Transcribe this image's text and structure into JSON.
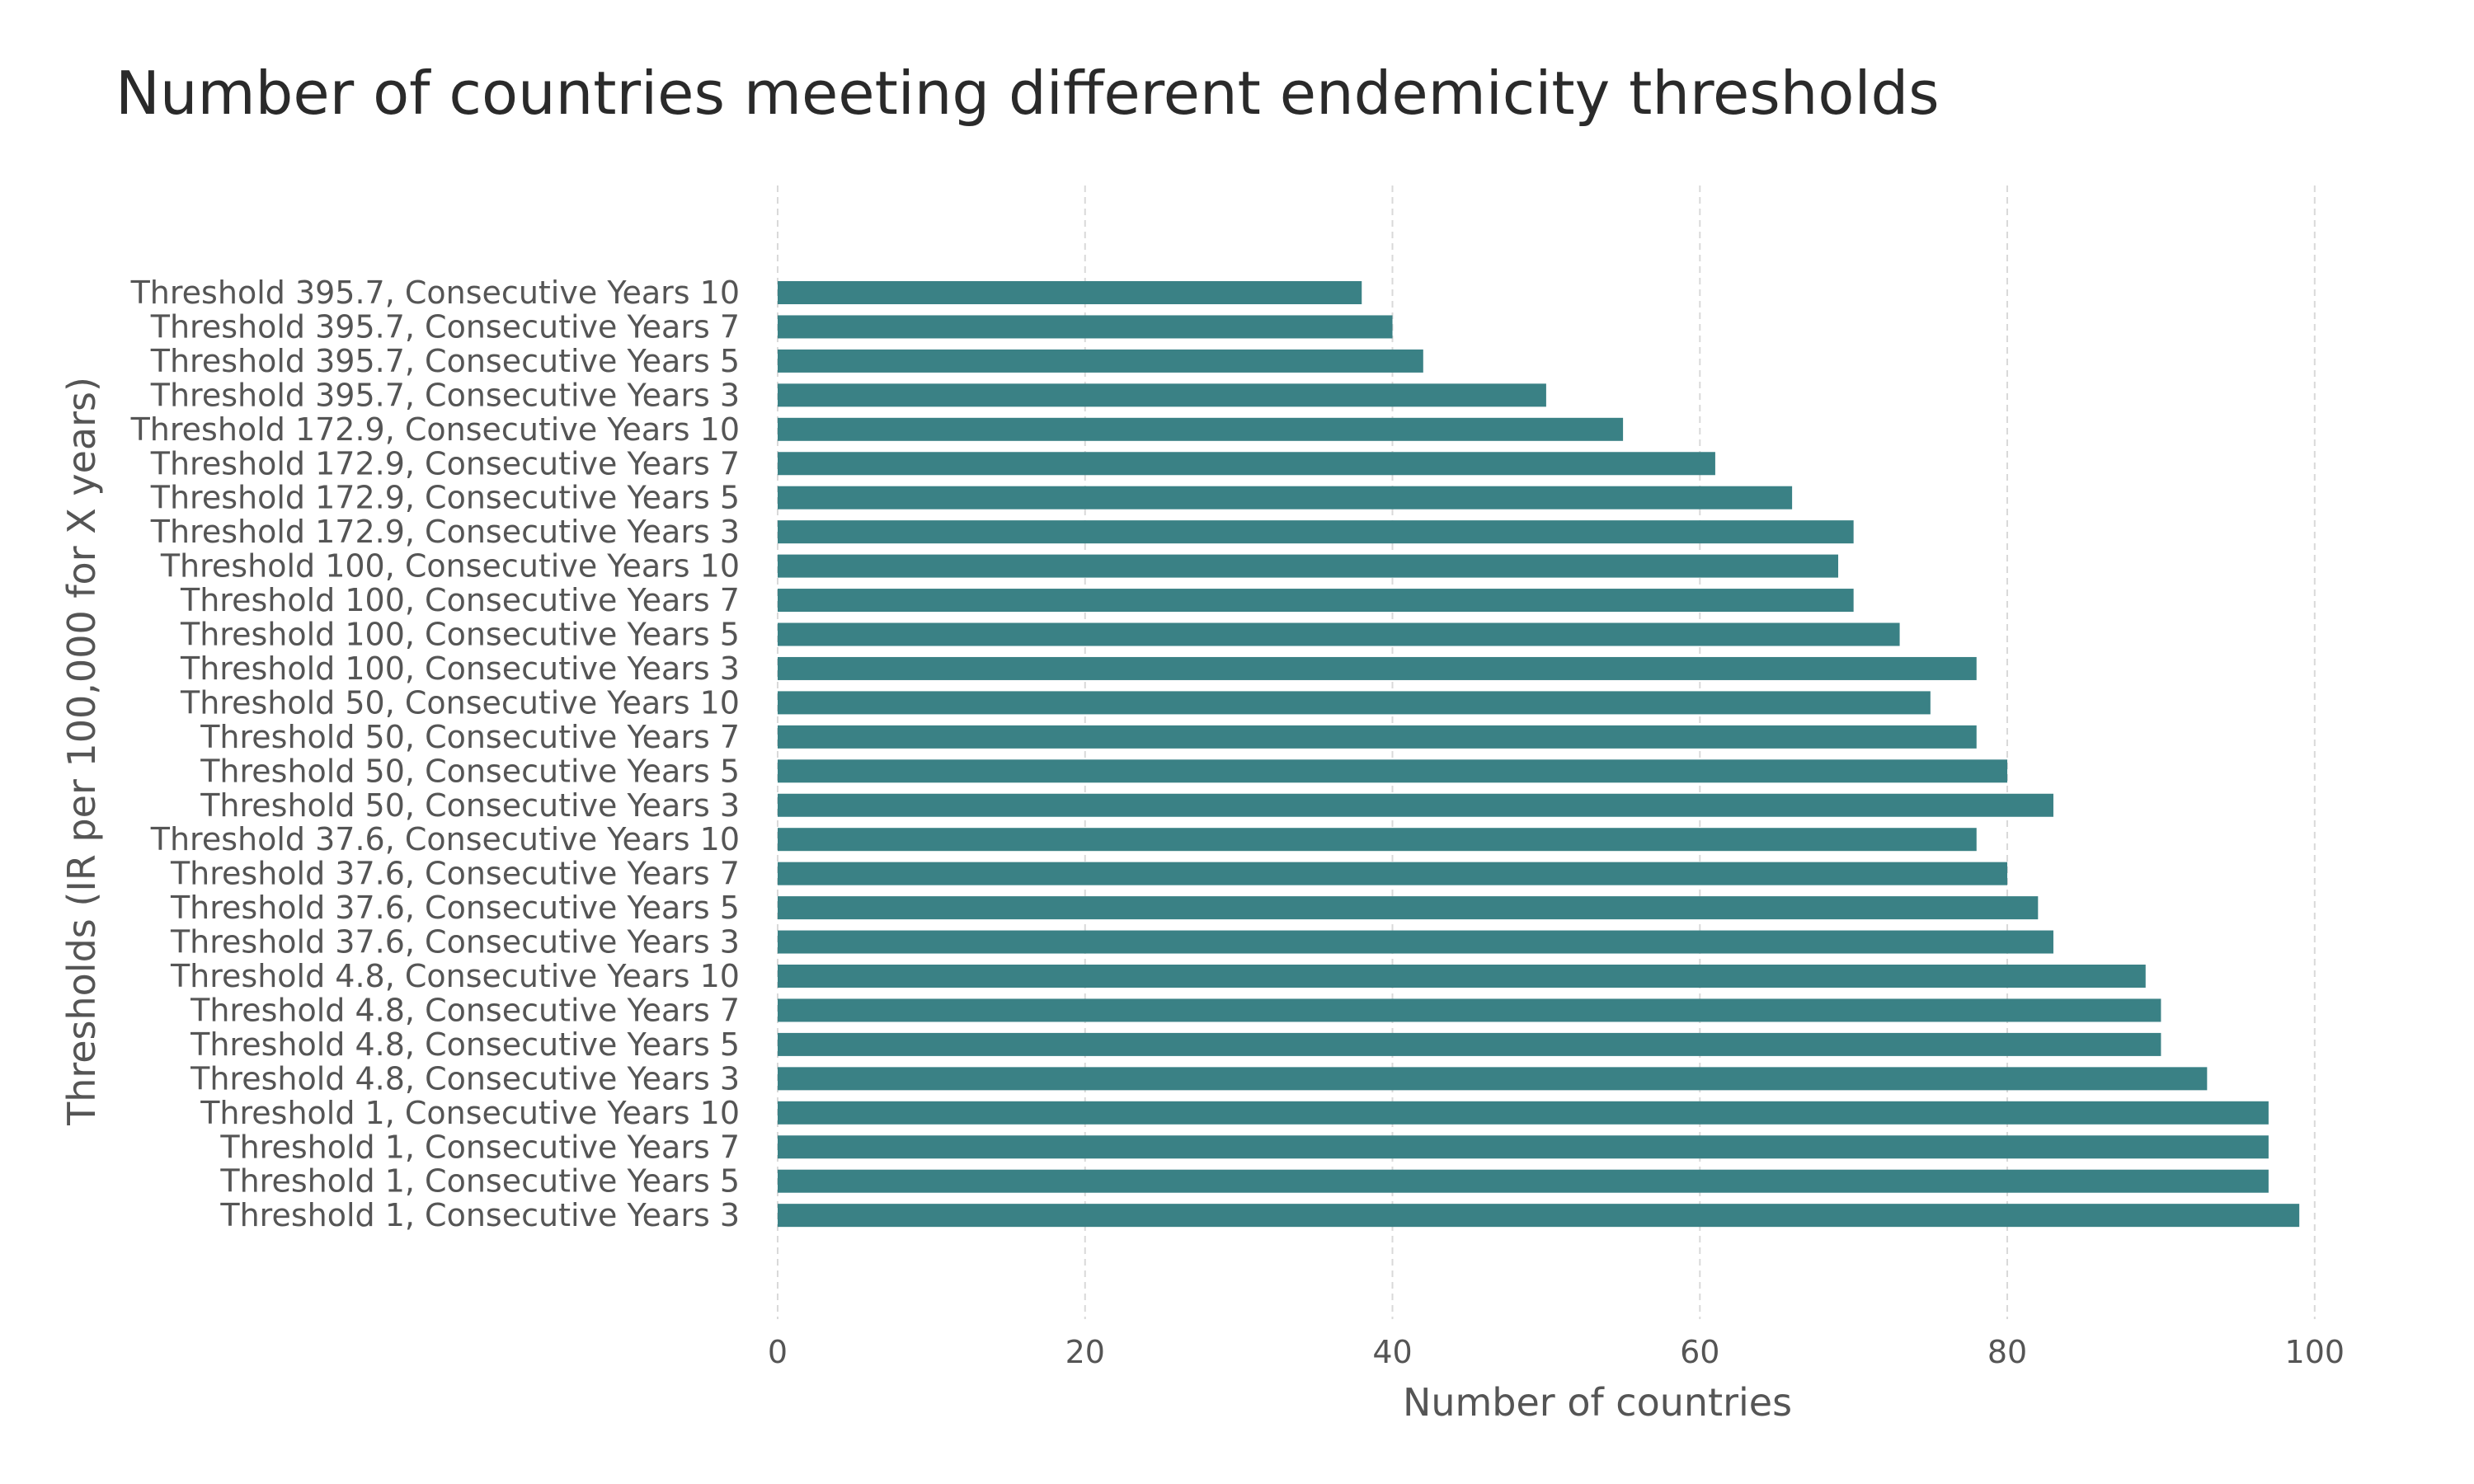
{
  "chart_data": {
    "type": "bar",
    "orientation": "horizontal",
    "title": "Number of countries meeting different endemicity thresholds",
    "xlabel": "Number of countries",
    "ylabel": "Thresholds (IR per 100,000 for X years)",
    "xlim": [
      0,
      105
    ],
    "xticks": [
      0,
      20,
      40,
      60,
      80,
      100
    ],
    "grid": "vertical dashed",
    "bar_color": "#3a8185",
    "categories": [
      "Threshold 395.7, Consecutive Years 10",
      "Threshold 395.7, Consecutive Years 7",
      "Threshold 395.7, Consecutive Years 5",
      "Threshold 395.7, Consecutive Years 3",
      "Threshold 172.9, Consecutive Years 10",
      "Threshold 172.9, Consecutive Years 7",
      "Threshold 172.9, Consecutive Years 5",
      "Threshold 172.9, Consecutive Years 3",
      "Threshold 100, Consecutive Years 10",
      "Threshold 100, Consecutive Years 7",
      "Threshold 100, Consecutive Years 5",
      "Threshold 100, Consecutive Years 3",
      "Threshold 50, Consecutive Years 10",
      "Threshold 50, Consecutive Years 7",
      "Threshold 50, Consecutive Years 5",
      "Threshold 50, Consecutive Years 3",
      "Threshold 37.6, Consecutive Years 10",
      "Threshold 37.6, Consecutive Years 7",
      "Threshold 37.6, Consecutive Years 5",
      "Threshold 37.6, Consecutive Years 3",
      "Threshold 4.8, Consecutive Years 10",
      "Threshold 4.8, Consecutive Years 7",
      "Threshold 4.8, Consecutive Years 5",
      "Threshold 4.8, Consecutive Years 3",
      "Threshold 1, Consecutive Years 10",
      "Threshold 1, Consecutive Years 7",
      "Threshold 1, Consecutive Years 5",
      "Threshold 1, Consecutive Years 3"
    ],
    "values": [
      38,
      40,
      42,
      50,
      55,
      61,
      66,
      70,
      69,
      70,
      73,
      78,
      75,
      78,
      80,
      83,
      78,
      80,
      82,
      83,
      89,
      90,
      90,
      93,
      97,
      97,
      97,
      99
    ]
  }
}
